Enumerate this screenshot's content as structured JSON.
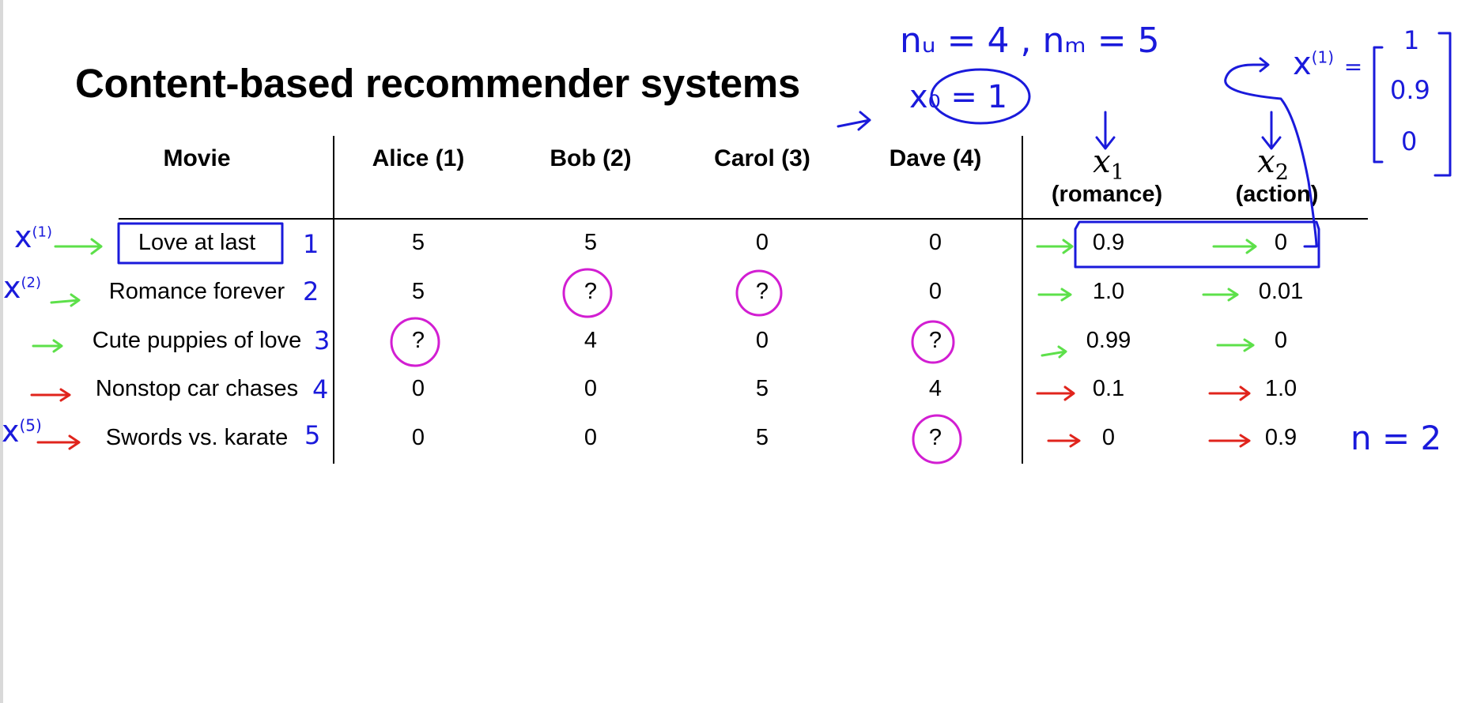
{
  "slide": {
    "title": "Content-based recommender systems",
    "header": {
      "movie": "Movie",
      "users": [
        "Alice (1)",
        "Bob (2)",
        "Carol (3)",
        "Dave (4)"
      ],
      "features": [
        {
          "var": "x",
          "sub": "1",
          "label": "(romance)"
        },
        {
          "var": "x",
          "sub": "2",
          "label": "(action)"
        }
      ]
    },
    "rows": [
      {
        "movie": "Love at last",
        "ratings": [
          "5",
          "5",
          "0",
          "0"
        ],
        "features": [
          "0.9",
          "0"
        ]
      },
      {
        "movie": "Romance forever",
        "ratings": [
          "5",
          "?",
          "?",
          "0"
        ],
        "features": [
          "1.0",
          "0.01"
        ]
      },
      {
        "movie": "Cute puppies of love",
        "ratings": [
          "?",
          "4",
          "0",
          "?"
        ],
        "features": [
          "0.99",
          "0"
        ]
      },
      {
        "movie": "Nonstop car chases",
        "ratings": [
          "0",
          "0",
          "5",
          "4"
        ],
        "features": [
          "0.1",
          "1.0"
        ]
      },
      {
        "movie": "Swords vs. karate",
        "ratings": [
          "0",
          "0",
          "5",
          "?"
        ],
        "features": [
          "0",
          "0.9"
        ]
      }
    ]
  },
  "annotations": {
    "counts": "nᵤ = 4 , nₘ = 5",
    "x0": "x₀ = 1",
    "x1_label": "x",
    "x1_sup": "(1)",
    "x1_eq": "=",
    "vector": [
      "1",
      "0.9",
      "0"
    ],
    "row_labels": [
      "x",
      "x",
      "x"
    ],
    "row_label_sups": [
      "(1)",
      "(2)",
      "(5)"
    ],
    "row_numbers": [
      "1",
      "2",
      "3",
      "4",
      "5"
    ],
    "n_feat": "n = 2"
  },
  "colors": {
    "annotation_ink": "#1a1adb",
    "question_circle": "#d21ed2",
    "romance_arrow": "#5de04a",
    "action_arrow": "#e0241c"
  }
}
